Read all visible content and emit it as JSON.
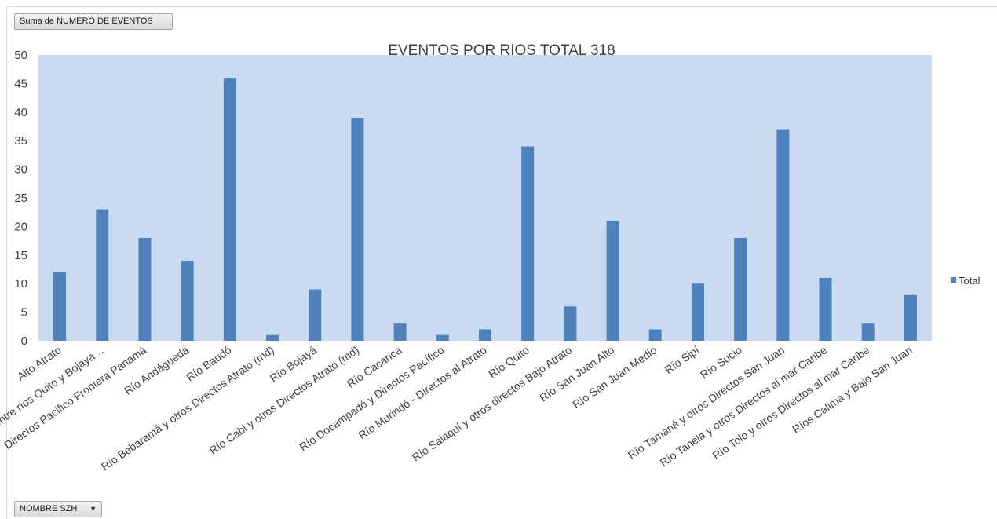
{
  "pivot": {
    "value_field_label": "Suma de NUMERO DE EVENTOS",
    "row_field_label": "NOMBRE SZH",
    "row_field_arrow": "▼"
  },
  "colors": {
    "plot_background": "#c9daf1",
    "bar": "#4f81bd"
  },
  "chart_data": {
    "type": "bar",
    "title": "EVENTOS POR RIOS TOTAL 318",
    "xlabel": "",
    "ylabel": "",
    "ylim": [
      0,
      50
    ],
    "yticks": [
      0,
      5,
      10,
      15,
      20,
      25,
      30,
      35,
      40,
      45,
      50
    ],
    "grid": false,
    "legend": "right",
    "categories": [
      "Alto Atrato",
      "Directos al Atrato entre ríos Quito y Bojayá…",
      "Directos Pacifico Frontera Panamá",
      "Río Andágueda",
      "Río Baudó",
      "Río Bebaramá y otros Directos Atrato (md)",
      "Río Bojayá",
      "Río Cabi y otros Directos Atrato (md)",
      "Río Cacarica",
      "Río Docampadó y Directos Pacífico",
      "Río Murindó - Directos al Atrato",
      "Río Quito",
      "Río Salaquí y otros directos Bajo Atrato",
      "Río San Juan Alto",
      "Río San Juan Medio",
      "Río Sipí",
      "Río Sucio",
      "Río Tamaná y otros Directos San Juan",
      "Río Tanela y otros Directos al mar Caribe",
      "Río Tolo y otros Directos al mar Caribe",
      "Ríos Calima y  Bajo San Juan"
    ],
    "series": [
      {
        "name": "Total",
        "values": [
          12,
          23,
          18,
          14,
          46,
          1,
          9,
          39,
          3,
          1,
          2,
          34,
          6,
          21,
          2,
          10,
          18,
          37,
          11,
          3,
          8
        ]
      }
    ]
  }
}
